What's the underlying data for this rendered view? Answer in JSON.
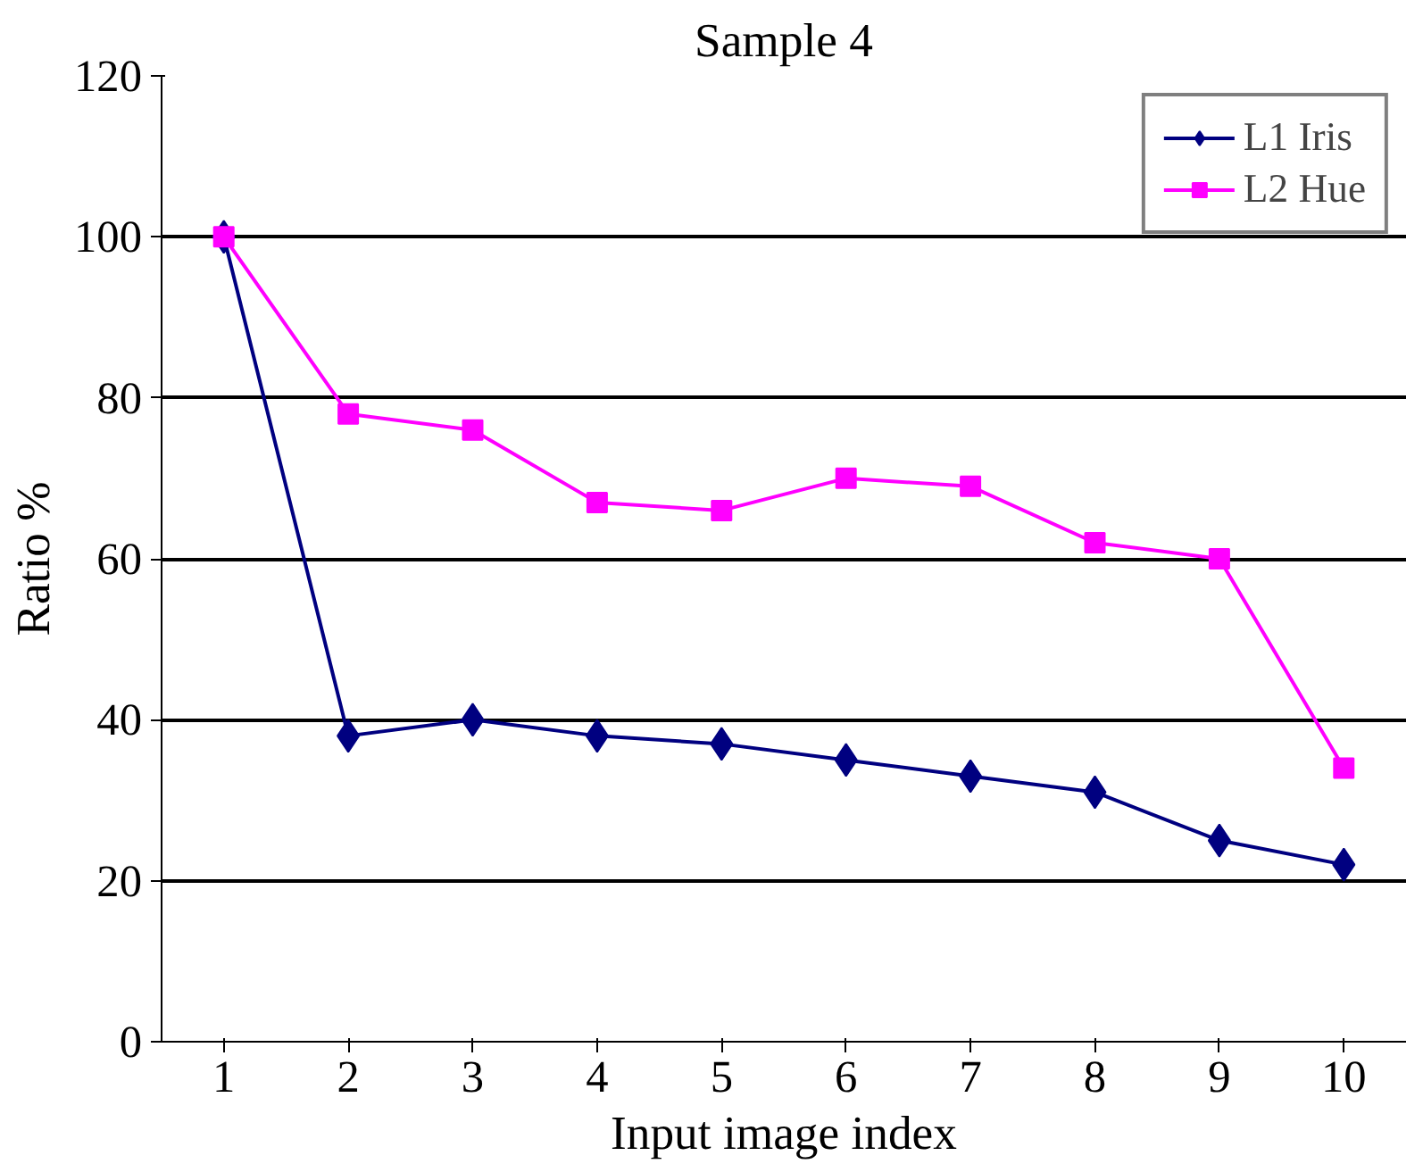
{
  "chart_data": {
    "type": "line",
    "title": "Sample 4",
    "xlabel": "Input image index",
    "ylabel": "Ratio %",
    "categories": [
      "1",
      "2",
      "3",
      "4",
      "5",
      "6",
      "7",
      "8",
      "9",
      "10"
    ],
    "series": [
      {
        "name": "L1 Iris",
        "color": "#000080",
        "marker": "diamond",
        "values": [
          100,
          38,
          40,
          38,
          37,
          35,
          33,
          31,
          25,
          22
        ]
      },
      {
        "name": "L2 Hue",
        "color": "#ff00ff",
        "marker": "square",
        "values": [
          100,
          78,
          76,
          67,
          66,
          70,
          69,
          62,
          60,
          34
        ]
      }
    ],
    "ylim": [
      0,
      120
    ],
    "yticks": [
      0,
      20,
      40,
      60,
      80,
      100,
      120
    ],
    "grid": "y",
    "legend": "top right",
    "line_style": "solid"
  }
}
